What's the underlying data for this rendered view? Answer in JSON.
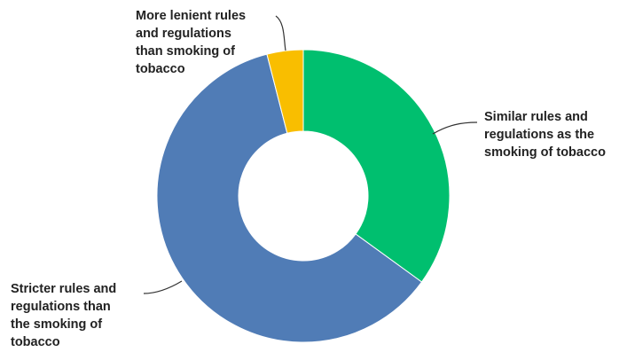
{
  "chart_data": {
    "type": "pie",
    "donut": true,
    "title": "",
    "slices": [
      {
        "label": "Similar rules and regulations as the smoking of tobacco",
        "label_lines": [
          "Similar rules and",
          "regulations as the",
          "smoking of tobacco"
        ],
        "value": 35,
        "color": "#00bf6f"
      },
      {
        "label": "Stricter rules and regulations than the smoking of tobacco",
        "label_lines": [
          "Stricter rules and",
          "regulations than",
          "the smoking of",
          "tobacco"
        ],
        "value": 61,
        "color": "#507cb6"
      },
      {
        "label": "More lenient rules and regulations than smoking of tobacco",
        "label_lines": [
          "More lenient rules",
          "and regulations",
          "than smoking of",
          "tobacco"
        ],
        "value": 4,
        "color": "#f9be00"
      }
    ],
    "legend": "none",
    "data_labels": false
  }
}
